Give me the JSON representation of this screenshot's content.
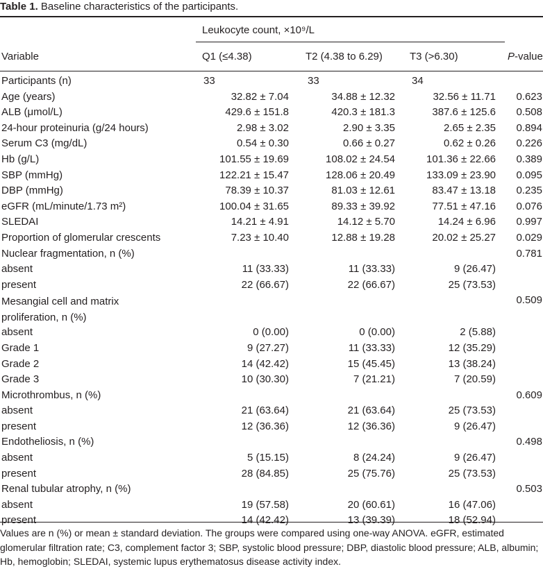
{
  "caption": {
    "label": "Table 1.",
    "text": "Baseline characteristics of the participants."
  },
  "header": {
    "group_label": "Leukocyte count, ×10⁹/L",
    "variable": "Variable",
    "q1": "Q1 (≤4.38)",
    "t2": "T2 (4.38 to 6.29)",
    "t3": "T3 (>6.30)",
    "p_value_italic": "P",
    "p_value_rest": "-value"
  },
  "rows": [
    {
      "label": "Participants (n)",
      "q1": "33",
      "t2": "33",
      "t3": "34",
      "p": "",
      "left": true
    },
    {
      "label": "Age (years)",
      "q1": "32.82 ± 7.04",
      "t2": "34.88 ± 12.32",
      "t3": "32.56 ± 11.71",
      "p": "0.623"
    },
    {
      "label": "ALB (μmol/L)",
      "q1": "429.6 ± 151.8",
      "t2": "420.3 ± 181.3",
      "t3": "387.6 ± 125.6",
      "p": "0.508"
    },
    {
      "label": "24-hour proteinuria (g/24 hours)",
      "q1": "2.98 ± 3.02",
      "t2": "2.90 ± 3.35",
      "t3": "2.65 ± 2.35",
      "p": "0.894"
    },
    {
      "label": "Serum C3 (mg/dL)",
      "q1": "0.54 ± 0.30",
      "t2": "0.66 ± 0.27",
      "t3": "0.62 ± 0.26",
      "p": "0.226"
    },
    {
      "label": "Hb (g/L)",
      "q1": "101.55 ± 19.69",
      "t2": "108.02 ± 24.54",
      "t3": "101.36 ± 22.66",
      "p": "0.389"
    },
    {
      "label": "SBP (mmHg)",
      "q1": "122.21 ± 15.47",
      "t2": "128.06 ± 20.49",
      "t3": "133.09 ± 23.90",
      "p": "0.095"
    },
    {
      "label": "DBP (mmHg)",
      "q1": "78.39 ± 10.37",
      "t2": "81.03 ± 12.61",
      "t3": "83.47 ± 13.18",
      "p": "0.235"
    },
    {
      "label": "eGFR (mL/minute/1.73 m²)",
      "q1": "100.04 ± 31.65",
      "t2": "89.33 ± 39.92",
      "t3": "77.51 ± 47.16",
      "p": "0.076"
    },
    {
      "label": "SLEDAI",
      "q1": "14.21 ± 4.91",
      "t2": "14.12 ± 5.70",
      "t3": "14.24 ± 6.96",
      "p": "0.997"
    },
    {
      "label": "Proportion of glomerular crescents",
      "q1": "7.23 ± 10.40",
      "t2": "12.88 ± 19.28",
      "t3": "20.02 ± 25.27",
      "p": "0.029"
    },
    {
      "label": "Nuclear fragmentation, n (%)",
      "q1": "",
      "t2": "",
      "t3": "",
      "p": "0.781"
    },
    {
      "label": "absent",
      "q1": "11 (33.33)",
      "t2": "11 (33.33)",
      "t3": "9 (26.47)",
      "p": ""
    },
    {
      "label": "present",
      "q1": "22 (66.67)",
      "t2": "22 (66.67)",
      "t3": "25 (73.53)",
      "p": ""
    },
    {
      "label": "Mesangial cell and matrix proliferation, n (%)",
      "q1": "",
      "t2": "",
      "t3": "",
      "p": "0.509",
      "wrap": true
    },
    {
      "label": "absent",
      "q1": "0 (0.00)",
      "t2": "0 (0.00)",
      "t3": "2 (5.88)",
      "p": ""
    },
    {
      "label": "Grade 1",
      "q1": "9 (27.27)",
      "t2": "11 (33.33)",
      "t3": "12 (35.29)",
      "p": ""
    },
    {
      "label": "Grade 2",
      "q1": "14 (42.42)",
      "t2": "15 (45.45)",
      "t3": "13 (38.24)",
      "p": ""
    },
    {
      "label": "Grade 3",
      "q1": "10 (30.30)",
      "t2": "7 (21.21)",
      "t3": "7 (20.59)",
      "p": ""
    },
    {
      "label": "Microthrombus, n (%)",
      "q1": "",
      "t2": "",
      "t3": "",
      "p": "0.609"
    },
    {
      "label": "absent",
      "q1": "21 (63.64)",
      "t2": "21 (63.64)",
      "t3": "25 (73.53)",
      "p": ""
    },
    {
      "label": "present",
      "q1": "12 (36.36)",
      "t2": "12 (36.36)",
      "t3": "9 (26.47)",
      "p": ""
    },
    {
      "label": "Endotheliosis, n (%)",
      "q1": "",
      "t2": "",
      "t3": "",
      "p": "0.498"
    },
    {
      "label": "absent",
      "q1": "5 (15.15)",
      "t2": "8 (24.24)",
      "t3": "9 (26.47)",
      "p": ""
    },
    {
      "label": "present",
      "q1": "28 (84.85)",
      "t2": "25 (75.76)",
      "t3": "25 (73.53)",
      "p": ""
    },
    {
      "label": "Renal tubular atrophy, n (%)",
      "q1": "",
      "t2": "",
      "t3": "",
      "p": "0.503"
    },
    {
      "label": "absent",
      "q1": "19 (57.58)",
      "t2": "20 (60.61)",
      "t3": "16 (47.06)",
      "p": ""
    },
    {
      "label": "present",
      "q1": "14 (42.42)",
      "t2": "13 (39.39)",
      "t3": "18 (52.94)",
      "p": ""
    }
  ],
  "footnote": "Values are n (%) or mean ± standard deviation. The groups were compared using one-way ANOVA. eGFR, estimated glomerular filtration rate; C3, complement factor 3; SBP, systolic blood pressure; DBP, diastolic blood pressure; ALB, albumin; Hb, hemoglobin; SLEDAI, systemic lupus erythematosus disease activity index."
}
